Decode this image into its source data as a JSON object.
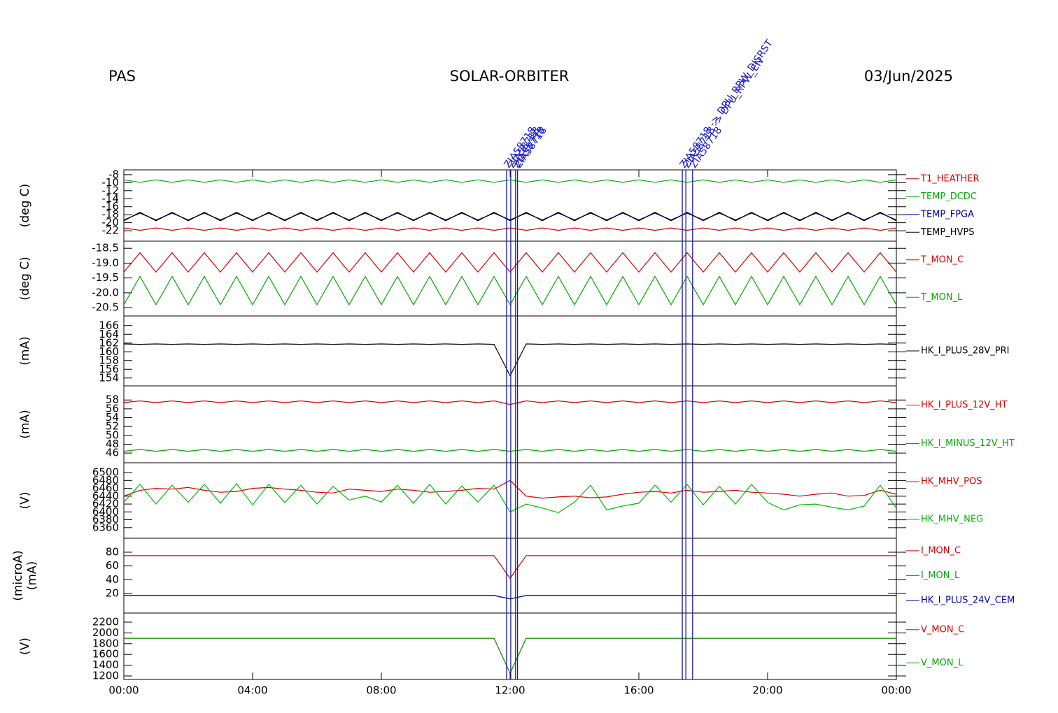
{
  "header": {
    "left": "PAS",
    "center": "SOLAR-ORBITER",
    "right": "03/Jun/2025"
  },
  "x_axis": {
    "xlim": [
      0,
      24
    ],
    "xticks": [
      {
        "value": 0,
        "label": "00:00"
      },
      {
        "value": 4,
        "label": "04:00"
      },
      {
        "value": 8,
        "label": "08:00"
      },
      {
        "value": 12,
        "label": "12:00"
      },
      {
        "value": 16,
        "label": "16:00"
      },
      {
        "value": 20,
        "label": "20:00"
      },
      {
        "value": 24,
        "label": "00:00"
      }
    ],
    "x": [
      0,
      0.5,
      1,
      1.5,
      2,
      2.5,
      3,
      3.5,
      4,
      4.5,
      5,
      5.5,
      6,
      6.5,
      7,
      7.5,
      8,
      8.5,
      9,
      9.5,
      10,
      10.5,
      11,
      11.5,
      12,
      12.5,
      13,
      13.5,
      14,
      14.5,
      15,
      15.5,
      16,
      16.5,
      17,
      17.5,
      18,
      18.5,
      19,
      19.5,
      20,
      20.5,
      21,
      21.5,
      22,
      22.5,
      23,
      23.5,
      24
    ]
  },
  "events": [
    {
      "x": 11.89,
      "label": "ZIA58718"
    },
    {
      "x": 12.02,
      "label": "ZIA58718"
    },
    {
      "x": 12.17,
      "label": "ZIA58718"
    },
    {
      "x": 12.23,
      "label": "ZIA58718"
    },
    {
      "x": 17.35,
      "label": "ZIA58718 -> DPU_RPW_DISRST"
    },
    {
      "x": 17.46,
      "label": "ZIA58718 -> DPU_RPW_EN"
    },
    {
      "x": 17.67,
      "label": "ZIA58718"
    }
  ],
  "chart_data": [
    {
      "type": "line",
      "ylabel": "(deg C)",
      "ylim": [
        -24.6,
        -6.8
      ],
      "yticks": [
        -22,
        -20,
        -18,
        -16,
        -14,
        -12,
        -10,
        -8
      ],
      "series": [
        {
          "name": "T1_HEATHER",
          "color": "#dd0000",
          "values": [
            -21.3,
            -21.9,
            -21.3,
            -21.9,
            -21.3,
            -21.9,
            -21.3,
            -21.9,
            -21.3,
            -21.9,
            -21.3,
            -21.9,
            -21.3,
            -21.9,
            -21.3,
            -21.9,
            -21.3,
            -21.9,
            -21.3,
            -21.9,
            -21.3,
            -21.9,
            -21.3,
            -21.9,
            -21.3,
            -21.9,
            -21.3,
            -21.9,
            -21.3,
            -21.9,
            -21.3,
            -21.9,
            -21.3,
            -21.9,
            -21.3,
            -21.9,
            -21.3,
            -21.9,
            -21.3,
            -21.9,
            -21.3,
            -21.9,
            -21.3,
            -21.9,
            -21.3,
            -21.9,
            -21.3,
            -21.9,
            -21.3
          ]
        },
        {
          "name": "TEMP_DCDC",
          "color": "#00aa00",
          "values": [
            -9.3,
            -9.9,
            -9.3,
            -9.9,
            -9.3,
            -9.9,
            -9.3,
            -9.9,
            -9.3,
            -9.9,
            -9.3,
            -9.9,
            -9.3,
            -9.9,
            -9.3,
            -9.9,
            -9.3,
            -9.9,
            -9.3,
            -9.9,
            -9.3,
            -9.9,
            -9.3,
            -9.9,
            -9.3,
            -9.9,
            -9.3,
            -9.9,
            -9.3,
            -9.9,
            -9.3,
            -9.9,
            -9.3,
            -9.9,
            -9.3,
            -9.9,
            -9.3,
            -9.9,
            -9.3,
            -9.9,
            -9.3,
            -9.9,
            -9.3,
            -9.9,
            -9.3,
            -9.9,
            -9.3,
            -9.9,
            -9.3
          ]
        },
        {
          "name": "TEMP_FPGA",
          "color": "#0000aa",
          "values": [
            -19.3,
            -17.6,
            -19.3,
            -17.6,
            -19.3,
            -17.6,
            -19.3,
            -17.6,
            -19.3,
            -17.6,
            -19.3,
            -17.6,
            -19.3,
            -17.6,
            -19.3,
            -17.6,
            -19.3,
            -17.6,
            -19.3,
            -17.6,
            -19.3,
            -17.6,
            -19.3,
            -17.6,
            -19.3,
            -17.6,
            -19.3,
            -17.6,
            -19.3,
            -17.6,
            -19.3,
            -17.6,
            -19.3,
            -17.6,
            -19.3,
            -17.6,
            -19.3,
            -17.6,
            -19.3,
            -17.6,
            -19.3,
            -17.6,
            -19.3,
            -17.6,
            -19.3,
            -17.6,
            -19.3,
            -17.6,
            -19.3
          ]
        },
        {
          "name": "TEMP_HVPS",
          "color": "#000000",
          "values": [
            -19.5,
            -17.4,
            -19.5,
            -17.4,
            -19.5,
            -17.4,
            -19.5,
            -17.4,
            -19.5,
            -17.4,
            -19.5,
            -17.4,
            -19.5,
            -17.4,
            -19.5,
            -17.4,
            -19.5,
            -17.4,
            -19.5,
            -17.4,
            -19.5,
            -17.4,
            -19.5,
            -17.4,
            -19.5,
            -17.4,
            -19.5,
            -17.4,
            -19.5,
            -17.4,
            -19.5,
            -17.4,
            -19.5,
            -17.4,
            -19.5,
            -17.4,
            -19.5,
            -17.4,
            -19.5,
            -17.4,
            -19.5,
            -17.4,
            -19.5,
            -17.4,
            -19.5,
            -17.4,
            -19.5,
            -17.4,
            -19.5
          ]
        }
      ]
    },
    {
      "type": "line",
      "ylabel": "(deg C)",
      "ylim": [
        -20.78,
        -18.26
      ],
      "yticks": [
        -20.5,
        {
          "value": -20,
          "label": "-20.0"
        },
        -19.5,
        {
          "value": -19,
          "label": "-19.0"
        },
        -18.5
      ],
      "series": [
        {
          "name": "T_MON_C",
          "color": "#dd0000",
          "values": [
            -19.3,
            -18.65,
            -19.3,
            -18.65,
            -19.3,
            -18.65,
            -19.3,
            -18.65,
            -19.3,
            -18.65,
            -19.3,
            -18.65,
            -19.3,
            -18.65,
            -19.3,
            -18.65,
            -19.3,
            -18.65,
            -19.3,
            -18.65,
            -19.3,
            -18.65,
            -19.3,
            -18.65,
            -19.3,
            -18.65,
            -19.3,
            -18.65,
            -19.3,
            -18.65,
            -19.3,
            -18.65,
            -19.3,
            -18.65,
            -19.3,
            -18.65,
            -19.3,
            -18.65,
            -19.3,
            -18.65,
            -19.3,
            -18.65,
            -19.3,
            -18.65,
            -19.3,
            -18.65,
            -19.3,
            -18.65,
            -19.3
          ]
        },
        {
          "name": "T_MON_L",
          "color": "#00aa00",
          "values": [
            -20.4,
            -19.45,
            -20.4,
            -19.45,
            -20.4,
            -19.45,
            -20.4,
            -19.45,
            -20.4,
            -19.45,
            -20.4,
            -19.45,
            -20.4,
            -19.45,
            -20.4,
            -19.45,
            -20.4,
            -19.45,
            -20.4,
            -19.45,
            -20.4,
            -19.45,
            -20.4,
            -19.45,
            -20.4,
            -19.45,
            -20.4,
            -19.45,
            -20.4,
            -19.45,
            -20.4,
            -19.45,
            -20.4,
            -19.45,
            -20.4,
            -19.45,
            -20.4,
            -19.45,
            -20.4,
            -19.45,
            -20.4,
            -19.45,
            -20.4,
            -19.45,
            -20.4,
            -19.45,
            -20.4,
            -19.45,
            -20.4
          ]
        }
      ]
    },
    {
      "type": "line",
      "ylabel": "(mA)",
      "ylim": [
        152.2,
        168.2
      ],
      "yticks": [
        154,
        156,
        158,
        160,
        162,
        164,
        166
      ],
      "series": [
        {
          "name": "HK_I_PLUS_28V_PRI",
          "color": "#000000",
          "values": [
            161.8,
            161.7,
            161.8,
            161.7,
            161.8,
            161.7,
            161.8,
            161.7,
            161.8,
            161.7,
            161.8,
            161.7,
            161.8,
            161.7,
            161.8,
            161.7,
            161.8,
            161.7,
            161.8,
            161.7,
            161.8,
            161.7,
            161.8,
            161.7,
            154.5,
            161.8,
            161.7,
            161.8,
            161.7,
            161.8,
            161.7,
            161.8,
            161.7,
            161.8,
            161.7,
            161.8,
            161.7,
            161.8,
            161.7,
            161.8,
            161.7,
            161.8,
            161.7,
            161.8,
            161.7,
            161.8,
            161.7,
            161.8,
            161.7
          ]
        }
      ]
    },
    {
      "type": "line",
      "ylabel": "(mA)",
      "ylim": [
        43.8,
        61.2
      ],
      "yticks": [
        46,
        48,
        50,
        52,
        54,
        56,
        58
      ],
      "series": [
        {
          "name": "HK_I_PLUS_12V_HT",
          "color": "#dd0000",
          "values": [
            57.4,
            57.8,
            57.4,
            57.8,
            57.4,
            57.8,
            57.4,
            57.8,
            57.4,
            57.8,
            57.4,
            57.8,
            57.4,
            57.8,
            57.4,
            57.8,
            57.4,
            57.8,
            57.4,
            57.8,
            57.4,
            57.8,
            57.4,
            57.8,
            57.0,
            57.8,
            57.4,
            57.8,
            57.4,
            57.8,
            57.4,
            57.8,
            57.4,
            57.8,
            57.4,
            57.8,
            57.4,
            57.8,
            57.4,
            57.8,
            57.4,
            57.8,
            57.4,
            57.8,
            57.4,
            57.8,
            57.4,
            57.8,
            57.4
          ]
        },
        {
          "name": "HK_I_MINUS_12V_HT",
          "color": "#00aa00",
          "values": [
            46.4,
            46.8,
            46.4,
            46.8,
            46.4,
            46.8,
            46.4,
            46.8,
            46.4,
            46.8,
            46.4,
            46.8,
            46.4,
            46.8,
            46.4,
            46.8,
            46.4,
            46.8,
            46.4,
            46.8,
            46.4,
            46.8,
            46.4,
            46.8,
            46.4,
            46.8,
            46.4,
            46.8,
            46.4,
            46.8,
            46.4,
            46.8,
            46.4,
            46.8,
            46.4,
            46.8,
            46.4,
            46.8,
            46.4,
            46.8,
            46.4,
            46.8,
            46.4,
            46.8,
            46.4,
            46.8,
            46.4,
            46.8,
            46.4
          ]
        }
      ]
    },
    {
      "type": "line",
      "ylabel": "(V)",
      "ylim": [
        6333,
        6525
      ],
      "yticks": [
        6360,
        6380,
        6400,
        6420,
        6440,
        6460,
        6480,
        6500
      ],
      "series": [
        {
          "name": "HK_MHV_POS",
          "color": "#dd0000",
          "values": [
            6440,
            6455,
            6460,
            6458,
            6462,
            6455,
            6450,
            6452,
            6460,
            6462,
            6458,
            6455,
            6450,
            6448,
            6458,
            6455,
            6452,
            6458,
            6455,
            6450,
            6452,
            6455,
            6460,
            6458,
            6480,
            6440,
            6435,
            6438,
            6440,
            6436,
            6438,
            6445,
            6450,
            6452,
            6448,
            6455,
            6450,
            6452,
            6455,
            6450,
            6448,
            6445,
            6440,
            6445,
            6448,
            6440,
            6442,
            6455,
            6445
          ]
        },
        {
          "name": "HK_MHV_NEG",
          "color": "#00bb00",
          "values": [
            6425,
            6470,
            6420,
            6468,
            6425,
            6470,
            6422,
            6472,
            6418,
            6470,
            6424,
            6468,
            6420,
            6465,
            6430,
            6440,
            6425,
            6468,
            6422,
            6470,
            6420,
            6466,
            6425,
            6468,
            6400,
            6420,
            6410,
            6398,
            6425,
            6468,
            6405,
            6415,
            6422,
            6468,
            6425,
            6470,
            6418,
            6465,
            6420,
            6470,
            6424,
            6405,
            6418,
            6420,
            6412,
            6405,
            6415,
            6468,
            6410
          ]
        }
      ]
    },
    {
      "type": "line",
      "ylabel": [
        "(microA)",
        "(mA)"
      ],
      "ylim": [
        -8.5,
        100.3
      ],
      "yticks": [
        20,
        40,
        60,
        80
      ],
      "series": [
        {
          "name": "I_MON_C",
          "color": "#dd0000",
          "values": [
            75,
            75,
            75,
            75,
            75,
            75,
            75,
            75,
            75,
            75,
            75,
            75,
            75,
            75,
            75,
            75,
            75,
            75,
            75,
            75,
            75,
            75,
            75,
            75,
            42,
            75,
            75,
            75,
            75,
            75,
            75,
            75,
            75,
            75,
            75,
            75,
            75,
            75,
            75,
            75,
            75,
            75,
            75,
            75,
            75,
            75,
            75,
            75,
            75
          ]
        },
        {
          "name": "I_MON_L",
          "color": "#00aa00",
          "values": [
            17,
            17,
            17,
            17,
            17,
            17,
            17,
            17,
            17,
            17,
            17,
            17,
            17,
            17,
            17,
            17,
            17,
            17,
            17,
            17,
            17,
            17,
            17,
            17,
            12,
            17,
            17,
            17,
            17,
            17,
            17,
            17,
            17,
            17,
            17,
            17,
            17,
            17,
            17,
            17,
            17,
            17,
            17,
            17,
            17,
            17,
            17,
            17,
            17
          ]
        },
        {
          "name": "HK_I_PLUS_24V_CEM",
          "color": "#0000aa",
          "values": [
            17,
            17,
            17,
            17,
            17,
            17,
            17,
            17,
            17,
            17,
            17,
            17,
            17,
            17,
            17,
            17,
            17,
            17,
            17,
            17,
            17,
            17,
            17,
            17,
            12,
            17,
            17,
            17,
            17,
            17,
            17,
            17,
            17,
            17,
            17,
            17,
            17,
            17,
            17,
            17,
            17,
            17,
            17,
            17,
            17,
            17,
            17,
            17,
            17
          ]
        }
      ]
    },
    {
      "type": "line",
      "ylabel": "(V)",
      "ylim": [
        1135,
        2369
      ],
      "yticks": [
        1200,
        1400,
        1600,
        1800,
        2000,
        2200
      ],
      "series": [
        {
          "name": "V_MON_C",
          "color": "#dd0000",
          "values": [
            1900,
            1900,
            1900,
            1900,
            1900,
            1900,
            1900,
            1900,
            1900,
            1900,
            1900,
            1900,
            1900,
            1900,
            1900,
            1900,
            1900,
            1900,
            1900,
            1900,
            1900,
            1900,
            1900,
            1900,
            1250,
            1900,
            1900,
            1900,
            1900,
            1900,
            1900,
            1900,
            1900,
            1900,
            1900,
            1900,
            1900,
            1900,
            1900,
            1900,
            1900,
            1900,
            1900,
            1900,
            1900,
            1900,
            1900,
            1900,
            1900
          ]
        },
        {
          "name": "V_MON_L",
          "color": "#00aa00",
          "values": [
            1900,
            1900,
            1900,
            1900,
            1900,
            1900,
            1900,
            1900,
            1900,
            1900,
            1900,
            1900,
            1900,
            1900,
            1900,
            1900,
            1900,
            1900,
            1900,
            1900,
            1900,
            1900,
            1900,
            1900,
            1250,
            1900,
            1900,
            1900,
            1900,
            1900,
            1900,
            1900,
            1900,
            1900,
            1900,
            1900,
            1900,
            1900,
            1900,
            1900,
            1900,
            1900,
            1900,
            1900,
            1900,
            1900,
            1900,
            1900,
            1900
          ]
        }
      ]
    }
  ]
}
